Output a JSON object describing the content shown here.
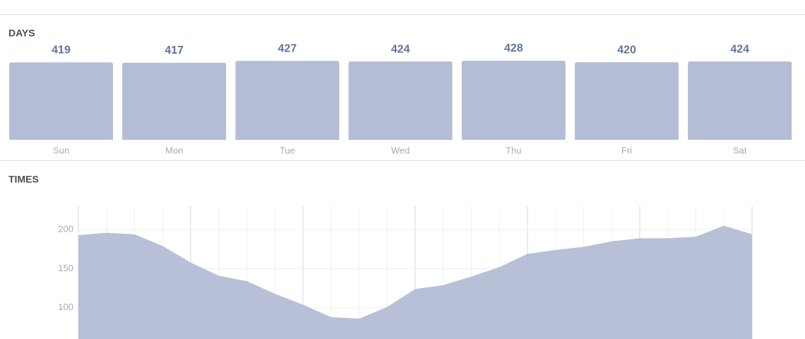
{
  "chart_data": [
    {
      "type": "bar",
      "title": "DAYS",
      "categories": [
        "Sun",
        "Mon",
        "Tue",
        "Wed",
        "Thu",
        "Fri",
        "Sat"
      ],
      "values": [
        419,
        417,
        427,
        424,
        428,
        420,
        424
      ],
      "color": "#b4bdd5",
      "ylim": [
        0,
        428
      ]
    },
    {
      "type": "area",
      "title": "TIMES",
      "values": [
        193,
        196,
        194,
        179,
        158,
        141,
        134,
        118,
        104,
        88,
        86,
        101,
        124,
        129,
        140,
        152,
        169,
        174,
        178,
        185,
        189,
        189,
        191,
        205,
        194
      ],
      "color": "#b4bdd5",
      "ylim": [
        60,
        230
      ],
      "yticks": [
        100,
        150,
        200
      ],
      "grid": true
    }
  ]
}
